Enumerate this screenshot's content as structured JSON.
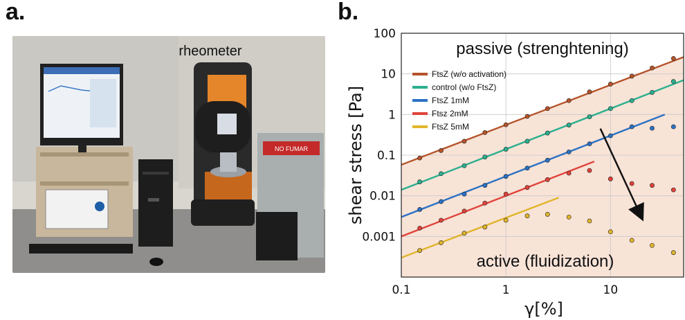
{
  "panels": {
    "a": "a.",
    "b": "b."
  },
  "photo": {
    "label": "rheometer",
    "sign": "NO FUMAR"
  },
  "chart_data": {
    "type": "scatter",
    "xlabel": "γ[%]",
    "ylabel": "shear stress [Pa]",
    "xscale": "log",
    "yscale": "log",
    "xlim": [
      0.1,
      50
    ],
    "ylim": [
      0.0001,
      100
    ],
    "x_ticks": [
      "0.1",
      "1",
      "10"
    ],
    "y_ticks": [
      "100",
      "10",
      "1",
      "0.1",
      "0.01",
      "0.001"
    ],
    "regions": [
      {
        "label": "passive (strenghtening)",
        "color": "#ffffff"
      },
      {
        "label": "active (fluidization)",
        "color": "#f8e3d7"
      }
    ],
    "legend": {
      "position": "top-left"
    },
    "series": [
      {
        "name": "FtsZ  (w/o activation)",
        "color": "#b5542a",
        "fit": {
          "x": [
            0.1,
            50
          ],
          "y": [
            0.058,
            26
          ]
        },
        "points": {
          "x": [
            0.15,
            0.24,
            0.4,
            0.63,
            1.0,
            1.6,
            2.5,
            4,
            6.3,
            10,
            16,
            25,
            40
          ],
          "y": [
            0.085,
            0.13,
            0.22,
            0.36,
            0.56,
            0.9,
            1.4,
            2.2,
            3.6,
            5.6,
            8.8,
            14,
            24
          ]
        }
      },
      {
        "name": "control (w/o FtsZ)",
        "color": "#2bb08f",
        "fit": {
          "x": [
            0.1,
            50
          ],
          "y": [
            0.014,
            7
          ]
        },
        "points": {
          "x": [
            0.15,
            0.24,
            0.4,
            0.63,
            1.0,
            1.6,
            2.5,
            4,
            6.3,
            10,
            16,
            25,
            40
          ],
          "y": [
            0.022,
            0.035,
            0.055,
            0.09,
            0.14,
            0.22,
            0.35,
            0.55,
            0.88,
            1.4,
            2.2,
            3.5,
            6.5
          ]
        }
      },
      {
        "name": "FtsZ 1mM",
        "color": "#2c72c4",
        "fit": {
          "x": [
            0.1,
            33
          ],
          "y": [
            0.003,
            1.0
          ]
        },
        "points": {
          "x": [
            0.15,
            0.24,
            0.4,
            0.63,
            1.0,
            1.6,
            2.5,
            4,
            6.3,
            10,
            16,
            25,
            40
          ],
          "y": [
            0.0046,
            0.0072,
            0.011,
            0.018,
            0.03,
            0.048,
            0.075,
            0.12,
            0.19,
            0.3,
            0.5,
            0.46,
            0.5
          ]
        }
      },
      {
        "name": "Ftsz 2mM",
        "color": "#e0433a",
        "fit": {
          "x": [
            0.1,
            7
          ],
          "y": [
            0.001,
            0.07
          ]
        },
        "points": {
          "x": [
            0.15,
            0.24,
            0.4,
            0.63,
            1.0,
            1.6,
            2.5,
            4,
            6.3,
            10,
            16,
            25,
            40
          ],
          "y": [
            0.0016,
            0.0025,
            0.0042,
            0.0066,
            0.011,
            0.016,
            0.025,
            0.036,
            0.042,
            0.026,
            0.02,
            0.018,
            0.014
          ]
        }
      },
      {
        "name": "FtsZ 5mM",
        "color": "#e0b52b",
        "fit": {
          "x": [
            0.1,
            3.2
          ],
          "y": [
            0.0003,
            0.009
          ]
        },
        "points": {
          "x": [
            0.15,
            0.24,
            0.4,
            0.63,
            1.0,
            1.6,
            2.5,
            4,
            6.3,
            10,
            16,
            25,
            40
          ],
          "y": [
            0.00045,
            0.0007,
            0.0012,
            0.0017,
            0.0025,
            0.0032,
            0.0035,
            0.003,
            0.0024,
            0.0013,
            0.0008,
            0.0006,
            0.0004
          ]
        }
      }
    ],
    "arrow": {
      "from": [
        8,
        0.45
      ],
      "to": [
        20,
        0.0028
      ]
    }
  }
}
